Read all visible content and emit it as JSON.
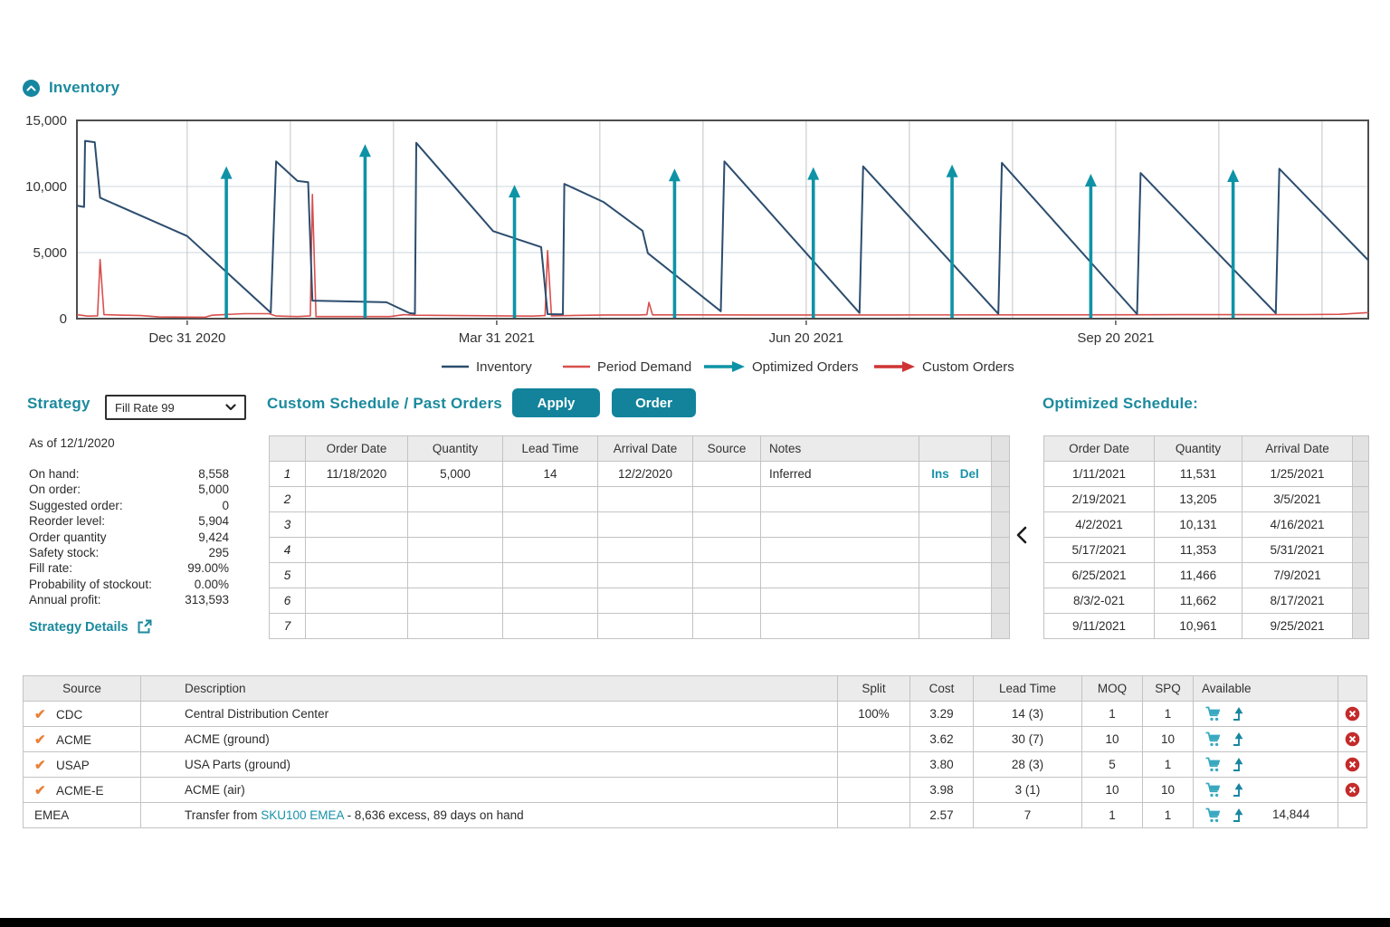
{
  "inventory_section": {
    "title": "Inventory"
  },
  "chart_data": {
    "type": "line",
    "title": "Inventory projection",
    "ylim": [
      0,
      15000
    ],
    "yticks": [
      {
        "v": 0,
        "label": "0"
      },
      {
        "v": 5000,
        "label": "5,000"
      },
      {
        "v": 10000,
        "label": "10,000"
      },
      {
        "v": 15000,
        "label": "15,000"
      }
    ],
    "x_axis": {
      "day_span": 363,
      "start_date": "11/30/2020",
      "grid_start": 31,
      "grid_step": 29,
      "labels": [
        {
          "day": 31,
          "label": "Dec 31 2020"
        },
        {
          "day": 118,
          "label": "Mar 31 2021"
        },
        {
          "day": 205,
          "label": "Jun 20 2021"
        },
        {
          "day": 292,
          "label": "Sep 20 2021"
        }
      ]
    },
    "series": {
      "inventory": {
        "name": "Inventory",
        "points": [
          [
            0,
            8558
          ],
          [
            2,
            8450
          ],
          [
            2.3,
            13450
          ],
          [
            5,
            13350
          ],
          [
            6.5,
            9150
          ],
          [
            31,
            6250
          ],
          [
            54.5,
            450
          ],
          [
            56,
            11900
          ],
          [
            62,
            10420
          ],
          [
            65,
            10320
          ],
          [
            66.2,
            1360
          ],
          [
            87,
            1240
          ],
          [
            93.5,
            420
          ],
          [
            95,
            380
          ],
          [
            95.4,
            13300
          ],
          [
            117,
            6620
          ],
          [
            130.5,
            5420
          ],
          [
            132.3,
            340
          ],
          [
            136.6,
            320
          ],
          [
            137,
            10200
          ],
          [
            148,
            8830
          ],
          [
            159,
            6650
          ],
          [
            160.5,
            4950
          ],
          [
            181,
            560
          ],
          [
            182,
            11900
          ],
          [
            220,
            430
          ],
          [
            221,
            11520
          ],
          [
            259,
            360
          ],
          [
            260,
            11790
          ],
          [
            298,
            340
          ],
          [
            299,
            11020
          ],
          [
            337,
            410
          ],
          [
            338,
            11340
          ],
          [
            363,
            4420
          ]
        ]
      },
      "demand": {
        "name": "Period Demand",
        "points": [
          [
            0,
            300
          ],
          [
            3,
            190
          ],
          [
            5.8,
            210
          ],
          [
            6.5,
            4470
          ],
          [
            7.6,
            300
          ],
          [
            18,
            230
          ],
          [
            23,
            130
          ],
          [
            36,
            110
          ],
          [
            38,
            260
          ],
          [
            47,
            380
          ],
          [
            54,
            380
          ],
          [
            56,
            200
          ],
          [
            62,
            160
          ],
          [
            65.6,
            210
          ],
          [
            66.2,
            9400
          ],
          [
            67.2,
            160
          ],
          [
            88,
            160
          ],
          [
            92,
            300
          ],
          [
            95,
            260
          ],
          [
            128,
            190
          ],
          [
            131.6,
            230
          ],
          [
            132.3,
            5150
          ],
          [
            133.4,
            210
          ],
          [
            149,
            280
          ],
          [
            158,
            280
          ],
          [
            160.2,
            300
          ],
          [
            160.8,
            1230
          ],
          [
            161.8,
            290
          ],
          [
            190,
            280
          ],
          [
            230,
            280
          ],
          [
            270,
            290
          ],
          [
            310,
            300
          ],
          [
            345,
            310
          ],
          [
            355,
            330
          ],
          [
            363,
            460
          ]
        ]
      }
    },
    "optimized_orders": [
      {
        "day": 42,
        "qty": 11531
      },
      {
        "day": 81,
        "qty": 13205
      },
      {
        "day": 123,
        "qty": 10131
      },
      {
        "day": 168,
        "qty": 11353
      },
      {
        "day": 207,
        "qty": 11466
      },
      {
        "day": 246,
        "qty": 11662
      },
      {
        "day": 285,
        "qty": 10961
      },
      {
        "day": 325,
        "qty": 11300
      }
    ],
    "legend": [
      {
        "label": "Inventory",
        "type": "line",
        "color": "#2c4d6e"
      },
      {
        "label": "Period Demand",
        "type": "line",
        "color": "#d8504d"
      },
      {
        "label": "Optimized Orders",
        "type": "arrow",
        "color": "#0e93a6"
      },
      {
        "label": "Custom Orders",
        "type": "arrow",
        "color": "#cf3434"
      }
    ],
    "grid": true,
    "legend_position": "bottom"
  },
  "strategy": {
    "title": "Strategy",
    "dropdown_value": "Fill Rate 99",
    "as_of": "As of 12/1/2020",
    "stats": [
      {
        "label": "On hand:",
        "value": "8,558"
      },
      {
        "label": "On order:",
        "value": "5,000"
      },
      {
        "label": "Suggested order:",
        "value": "0"
      },
      {
        "label": "Reorder level:",
        "value": "5,904"
      },
      {
        "label": "Order quantity",
        "value": "9,424"
      },
      {
        "label": "Safety stock:",
        "value": "295"
      },
      {
        "label": "Fill rate:",
        "value": "99.00%"
      },
      {
        "label": "Probability of stockout:",
        "value": "0.00%"
      },
      {
        "label": "Annual profit:",
        "value": "313,593"
      }
    ],
    "details_link": "Strategy Details"
  },
  "custom_schedule": {
    "title": "Custom Schedule / Past Orders",
    "apply_label": "Apply",
    "order_label": "Order",
    "columns": [
      "",
      "Order Date",
      "Quantity",
      "Lead Time",
      "Arrival Date",
      "Source",
      "Notes",
      ""
    ],
    "rows": [
      {
        "num": "1",
        "order_date": "11/18/2020",
        "quantity": "5,000",
        "lead_time": "14",
        "arrival_date": "12/2/2020",
        "source": "",
        "notes": "Inferred",
        "actions": [
          "Ins",
          "Del"
        ]
      },
      {
        "num": "2",
        "order_date": "",
        "quantity": "",
        "lead_time": "",
        "arrival_date": "",
        "source": "",
        "notes": "",
        "actions": []
      },
      {
        "num": "3",
        "order_date": "",
        "quantity": "",
        "lead_time": "",
        "arrival_date": "",
        "source": "",
        "notes": "",
        "actions": []
      },
      {
        "num": "4",
        "order_date": "",
        "quantity": "",
        "lead_time": "",
        "arrival_date": "",
        "source": "",
        "notes": "",
        "actions": []
      },
      {
        "num": "5",
        "order_date": "",
        "quantity": "",
        "lead_time": "",
        "arrival_date": "",
        "source": "",
        "notes": "",
        "actions": []
      },
      {
        "num": "6",
        "order_date": "",
        "quantity": "",
        "lead_time": "",
        "arrival_date": "",
        "source": "",
        "notes": "",
        "actions": []
      },
      {
        "num": "7",
        "order_date": "",
        "quantity": "",
        "lead_time": "",
        "arrival_date": "",
        "source": "",
        "notes": "",
        "actions": []
      }
    ]
  },
  "optimized_schedule": {
    "title": "Optimized Schedule:",
    "columns": [
      "Order Date",
      "Quantity",
      "Arrival Date"
    ],
    "rows": [
      [
        "1/11/2021",
        "11,531",
        "1/25/2021"
      ],
      [
        "2/19/2021",
        "13,205",
        "3/5/2021"
      ],
      [
        "4/2/2021",
        "10,131",
        "4/16/2021"
      ],
      [
        "5/17/2021",
        "11,353",
        "5/31/2021"
      ],
      [
        "6/25/2021",
        "11,466",
        "7/9/2021"
      ],
      [
        "8/3/2-021",
        "11,662",
        "8/17/2021"
      ],
      [
        "9/11/2021",
        "10,961",
        "9/25/2021"
      ]
    ]
  },
  "sources_table": {
    "columns": [
      "Source",
      "Description",
      "Split",
      "Cost",
      "Lead Time",
      "MOQ",
      "SPQ",
      "Available",
      ""
    ],
    "rows": [
      {
        "checked": true,
        "source": "CDC",
        "description": "Central Distribution Center",
        "split": "100%",
        "cost": "3.29",
        "lead_time": "14 (3)",
        "moq": "1",
        "spq": "1",
        "available": "",
        "removable": true
      },
      {
        "checked": true,
        "source": "ACME",
        "description": "ACME (ground)",
        "split": "",
        "cost": "3.62",
        "lead_time": "30 (7)",
        "moq": "10",
        "spq": "10",
        "available": "",
        "removable": true
      },
      {
        "checked": true,
        "source": "USAP",
        "description": "USA Parts (ground)",
        "split": "",
        "cost": "3.80",
        "lead_time": "28 (3)",
        "moq": "5",
        "spq": "1",
        "available": "",
        "removable": true
      },
      {
        "checked": true,
        "source": "ACME-E",
        "description": "ACME (air)",
        "split": "",
        "cost": "3.98",
        "lead_time": "3 (1)",
        "moq": "10",
        "spq": "10",
        "available": "",
        "removable": true
      },
      {
        "checked": false,
        "source": "EMEA",
        "description_prefix": "Transfer from ",
        "description_link": "SKU100 EMEA",
        "description_suffix": " - 8,636 excess, 89 days on hand",
        "split": "",
        "cost": "2.57",
        "lead_time": "7",
        "moq": "1",
        "spq": "1",
        "available": "14,844",
        "removable": false
      }
    ]
  },
  "icons": {
    "section_collapse": "chevron-up-circle",
    "dropdown": "chevron-down",
    "strategy_details": "external-link",
    "schedule_collapse": "chevron-left",
    "source_selected": "check",
    "cart": "shopping-cart",
    "transfer": "arrow-up-from-line",
    "remove": "circle-x"
  },
  "colors": {
    "accent": "#1b8a9e",
    "button": "#12839b",
    "link": "#1792a8",
    "inventory_line": "#2c4d6e",
    "demand_line": "#d8504d",
    "optimized_arrow": "#0e93a6",
    "custom_arrow": "#cf3434",
    "check_orange": "#e8823a",
    "remove_red": "#c42b2b"
  }
}
